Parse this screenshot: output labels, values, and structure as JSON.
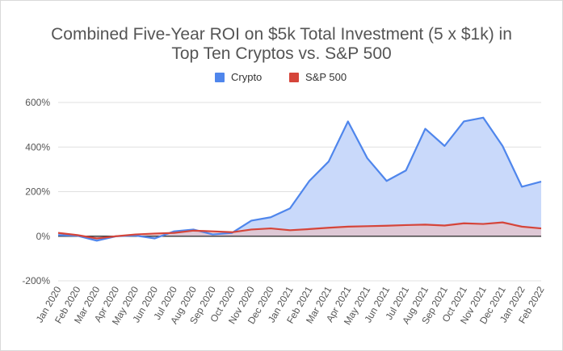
{
  "chart_data": {
    "type": "area",
    "title": "Combined Five-Year ROI on $5k Total Investment (5 x $1k) in Top Ten Cryptos vs. S&P 500",
    "title_lines": [
      "Combined Five-Year ROI on $5k Total Investment (5 x $1k) in",
      "Top Ten Cryptos vs. S&P 500"
    ],
    "xlabel": "",
    "ylabel": "",
    "ylim": [
      -200,
      600
    ],
    "y_ticks": [
      -200,
      0,
      200,
      400,
      600
    ],
    "y_tick_labels": [
      "-200%",
      "0%",
      "200%",
      "400%",
      "600%"
    ],
    "grid": true,
    "legend_position": "top",
    "categories": [
      "Jan 2020",
      "Feb 2020",
      "Mar 2020",
      "Apr 2020",
      "May 2020",
      "Jun 2020",
      "Jul 2020",
      "Aug 2020",
      "Sep 2020",
      "Oct 2020",
      "Nov 2020",
      "Dec 2020",
      "Jan 2021",
      "Feb 2021",
      "Mar 2021",
      "Apr 2021",
      "May 2021",
      "Jun 2021",
      "Jul 2021",
      "Aug 2021",
      "Sep 2021",
      "Oct 2021",
      "Nov 2021",
      "Dec 2021",
      "Jan 2022",
      "Feb 2022"
    ],
    "series": [
      {
        "name": "Crypto",
        "color": "#4f86ec",
        "fill": "#c9d9fa",
        "values": [
          5,
          2,
          -20,
          0,
          3,
          -10,
          22,
          30,
          8,
          15,
          70,
          85,
          125,
          248,
          335,
          515,
          350,
          248,
          295,
          482,
          405,
          515,
          532,
          405,
          222,
          245
        ]
      },
      {
        "name": "S&P 500",
        "color": "#d5453a",
        "fill": "#e4c1c8",
        "values": [
          15,
          5,
          -10,
          0,
          8,
          12,
          15,
          25,
          22,
          18,
          30,
          35,
          27,
          32,
          38,
          43,
          45,
          47,
          50,
          52,
          48,
          58,
          55,
          62,
          43,
          35
        ]
      }
    ]
  }
}
